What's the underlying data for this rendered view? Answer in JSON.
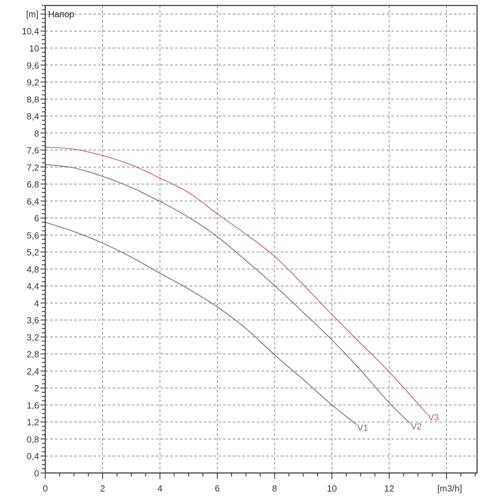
{
  "chart_data": {
    "type": "line",
    "title": "Напор",
    "xlabel": "[m3/h]",
    "ylabel": "[m]",
    "xlim": [
      0,
      15
    ],
    "ylim": [
      0,
      11.2
    ],
    "grid": true,
    "legend_position": "inline-curve-end-labels",
    "x_ticks": [
      "0",
      "2",
      "4",
      "6",
      "8",
      "10",
      "12"
    ],
    "y_ticks": [
      "0",
      "0,4",
      "0,8",
      "1,2",
      "1,6",
      "2",
      "2,4",
      "2,8",
      "3,2",
      "3,6",
      "4",
      "4,4",
      "4,8",
      "5,2",
      "5,6",
      "6",
      "6,4",
      "6,8",
      "7,2",
      "7,6",
      "8",
      "8,4",
      "8,8",
      "9,2",
      "9,6",
      "10",
      "10,4"
    ],
    "series": [
      {
        "name": "V1",
        "color": "#707070",
        "x": [
          0,
          1,
          2,
          3,
          4,
          5,
          6,
          7,
          8,
          9,
          10,
          10.86
        ],
        "values": [
          5.9,
          5.68,
          5.41,
          5.08,
          4.7,
          4.33,
          3.91,
          3.4,
          2.78,
          2.2,
          1.6,
          1.14
        ]
      },
      {
        "name": "V2",
        "color": "#707070",
        "x": [
          0,
          1,
          2,
          3,
          4,
          5,
          6,
          7,
          8,
          9,
          10,
          11,
          12,
          12.73
        ],
        "values": [
          7.26,
          7.18,
          6.98,
          6.72,
          6.39,
          6.02,
          5.56,
          5.0,
          4.41,
          3.78,
          3.13,
          2.42,
          1.65,
          1.17
        ]
      },
      {
        "name": "V3",
        "color": "#c0607a",
        "x": [
          0,
          1,
          2,
          3,
          4,
          5,
          6,
          7,
          8,
          9,
          10,
          11,
          12,
          13.33
        ],
        "values": [
          7.67,
          7.62,
          7.47,
          7.25,
          6.94,
          6.6,
          6.1,
          5.62,
          5.1,
          4.43,
          3.73,
          3.05,
          2.38,
          1.38
        ]
      }
    ]
  },
  "colors": {
    "axis": "#333333",
    "grid": "#8a8a8a",
    "background": "#ffffff"
  }
}
